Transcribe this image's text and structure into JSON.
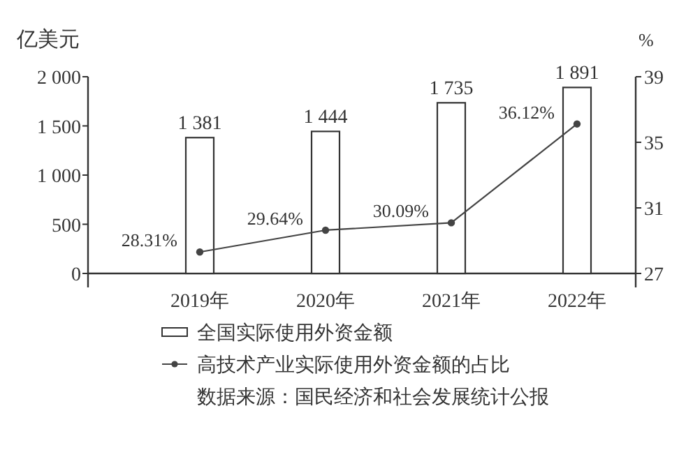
{
  "chart_data": {
    "type": "bar",
    "ylabel": "亿美元",
    "y2label": "%",
    "categories": [
      "2019年",
      "2020年",
      "2021年",
      "2022年"
    ],
    "series": [
      {
        "name": "全国实际使用外资金额",
        "color": "#ffffff",
        "values": [
          1381,
          1444,
          1735,
          1891
        ],
        "value_labels": [
          "1 381",
          "1 444",
          "1 735",
          "1 891"
        ]
      },
      {
        "name": "高技术产业实际使用外资金额的占比",
        "type": "line",
        "axis": "y2",
        "color": "#444444",
        "values": [
          28.31,
          29.64,
          30.09,
          36.12
        ],
        "value_labels": [
          "28.31%",
          "29.64%",
          "30.09%",
          "36.12%"
        ]
      }
    ],
    "ylim": [
      0,
      2000
    ],
    "yticks": [
      0,
      500,
      {
        "value": 1000,
        "label": "1 000"
      },
      {
        "value": 1500,
        "label": "1 500"
      },
      {
        "value": 2000,
        "label": "2 000"
      }
    ],
    "y2lim": [
      27,
      39
    ],
    "y2ticks": [
      27,
      31,
      35,
      39
    ],
    "legend": "bottom",
    "marker": "circle",
    "grid": false,
    "annotations": [
      "数据来源：国民经济和社会发展统计公报"
    ]
  }
}
